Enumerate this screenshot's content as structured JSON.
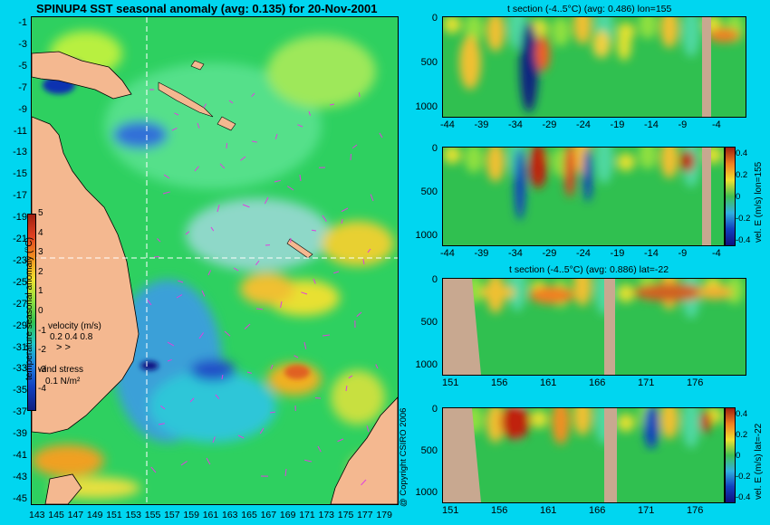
{
  "map": {
    "title": "SPINUP4 SST seasonal anomaly (avg: 0.135) for 20-Nov-2001",
    "lat_ticks": [
      "-1",
      "-3",
      "-5",
      "-7",
      "-9",
      "-11",
      "-13",
      "-15",
      "-17",
      "-19",
      "-21",
      "-23",
      "-25",
      "-27",
      "-29",
      "-31",
      "-33",
      "-35",
      "-37",
      "-39",
      "-41",
      "-43",
      "-45"
    ],
    "lon_ticks": [
      "143",
      "145",
      "147",
      "149",
      "151",
      "153",
      "155",
      "157",
      "159",
      "161",
      "163",
      "165",
      "167",
      "169",
      "171",
      "173",
      "175",
      "177",
      "179"
    ],
    "colorbar": {
      "label": "temperature seasonal anomaly (°C)",
      "ticks": [
        "5",
        "4",
        "3",
        "2",
        "1",
        "0",
        "-1",
        "-2",
        "-3",
        "-4"
      ],
      "range": [
        -4,
        5
      ]
    },
    "velocity_legend": {
      "title": "velocity (m/s)",
      "values": "0.2 0.4 0.8"
    },
    "wind_legend": {
      "title": "wind stress",
      "value": "0.1 N/m²"
    },
    "crosshair": {
      "lon": 155,
      "lat": -22
    }
  },
  "copyright": "@ Copyright CSIRO 2006",
  "panels": [
    {
      "title": "t section (-4..5°C) (avg: 0.486) lon=155",
      "x_ticks": [
        "-44",
        "-39",
        "-34",
        "-29",
        "-24",
        "-19",
        "-14",
        "-9",
        "-4"
      ],
      "y_ticks": [
        "0",
        "500",
        "1000"
      ],
      "side_label": ""
    },
    {
      "title": "",
      "x_ticks": [
        "-44",
        "-39",
        "-34",
        "-29",
        "-24",
        "-19",
        "-14",
        "-9",
        "-4"
      ],
      "y_ticks": [
        "0",
        "500",
        "1000"
      ],
      "side_label": "vel. E (m/s) lon=155",
      "cbar_ticks": [
        "0.4",
        "0.2",
        "0",
        "-0.2",
        "-0.4"
      ]
    },
    {
      "title": "t section (-4..5°C) (avg: 0.886) lat=-22",
      "x_ticks": [
        "151",
        "156",
        "161",
        "166",
        "171",
        "176"
      ],
      "y_ticks": [
        "0",
        "500",
        "1000"
      ],
      "side_label": ""
    },
    {
      "title": "",
      "x_ticks": [
        "151",
        "156",
        "161",
        "166",
        "171",
        "176"
      ],
      "y_ticks": [
        "0",
        "500",
        "1000"
      ],
      "side_label": "vel. E (m/s) lat=-22",
      "cbar_ticks": [
        "0.4",
        "0.2",
        "0",
        "-0.2",
        "-0.4"
      ]
    }
  ]
}
